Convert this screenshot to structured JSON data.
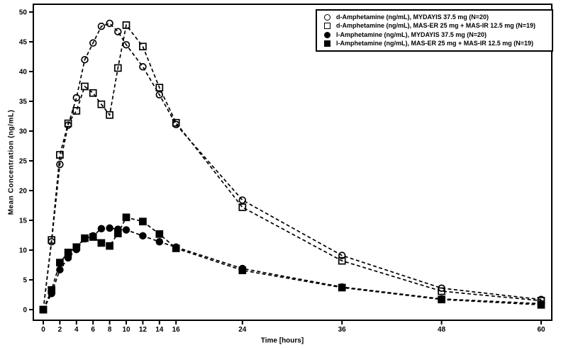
{
  "chart_data": {
    "type": "line",
    "title": "",
    "xlabel": "Time [hours]",
    "ylabel": "Mean Concentration (ng/mL)",
    "xlim": [
      0,
      60
    ],
    "ylim": [
      0,
      50
    ],
    "x_ticks": [
      0,
      2,
      4,
      6,
      8,
      10,
      12,
      14,
      16,
      24,
      36,
      48,
      60
    ],
    "y_ticks": [
      0,
      5,
      10,
      15,
      20,
      25,
      30,
      35,
      40,
      45,
      50
    ],
    "grid": false,
    "line_style": "dashed",
    "legend_position": "top-right",
    "colors": {
      "line": "#000000",
      "background": "#ffffff"
    },
    "x": [
      0,
      1,
      2,
      3,
      4,
      5,
      6,
      7,
      8,
      9,
      10,
      12,
      14,
      16,
      24,
      36,
      48,
      60
    ],
    "series": [
      {
        "name": "d-Amphetamine (ng/mL), MYDAYIS 37.5 mg (N=20)",
        "marker": "open-circle",
        "values": [
          0,
          11.4,
          24.4,
          31.0,
          35.6,
          42.0,
          44.8,
          47.6,
          48.1,
          46.7,
          44.5,
          40.8,
          36.1,
          31.1,
          18.4,
          9.1,
          3.6,
          1.7
        ]
      },
      {
        "name": "d-Amphetamine (ng/mL), MAS-ER 25 mg + MAS-IR 12.5 mg (N=19)",
        "marker": "open-square",
        "values": [
          0,
          11.7,
          26.0,
          31.3,
          33.4,
          37.5,
          36.4,
          34.5,
          32.7,
          40.6,
          47.8,
          44.2,
          37.3,
          31.4,
          17.2,
          8.2,
          3.1,
          1.5
        ]
      },
      {
        "name": "l-Amphetamine (ng/mL), MYDAYIS 37.5 mg (N=20)",
        "marker": "filled-circle",
        "values": [
          0,
          2.7,
          6.7,
          8.7,
          10.1,
          11.9,
          12.4,
          13.6,
          13.7,
          13.5,
          13.4,
          12.4,
          11.4,
          10.5,
          6.9,
          3.8,
          1.8,
          1.0
        ]
      },
      {
        "name": "l-Amphetamine (ng/mL), MAS-ER 25 mg + MAS-IR 12.5 mg (N=19)",
        "marker": "filled-square",
        "values": [
          0,
          3.3,
          7.9,
          9.6,
          10.5,
          12.0,
          12.2,
          11.2,
          10.7,
          12.8,
          15.5,
          14.8,
          12.7,
          10.3,
          6.6,
          3.7,
          1.7,
          0.8
        ]
      }
    ]
  }
}
